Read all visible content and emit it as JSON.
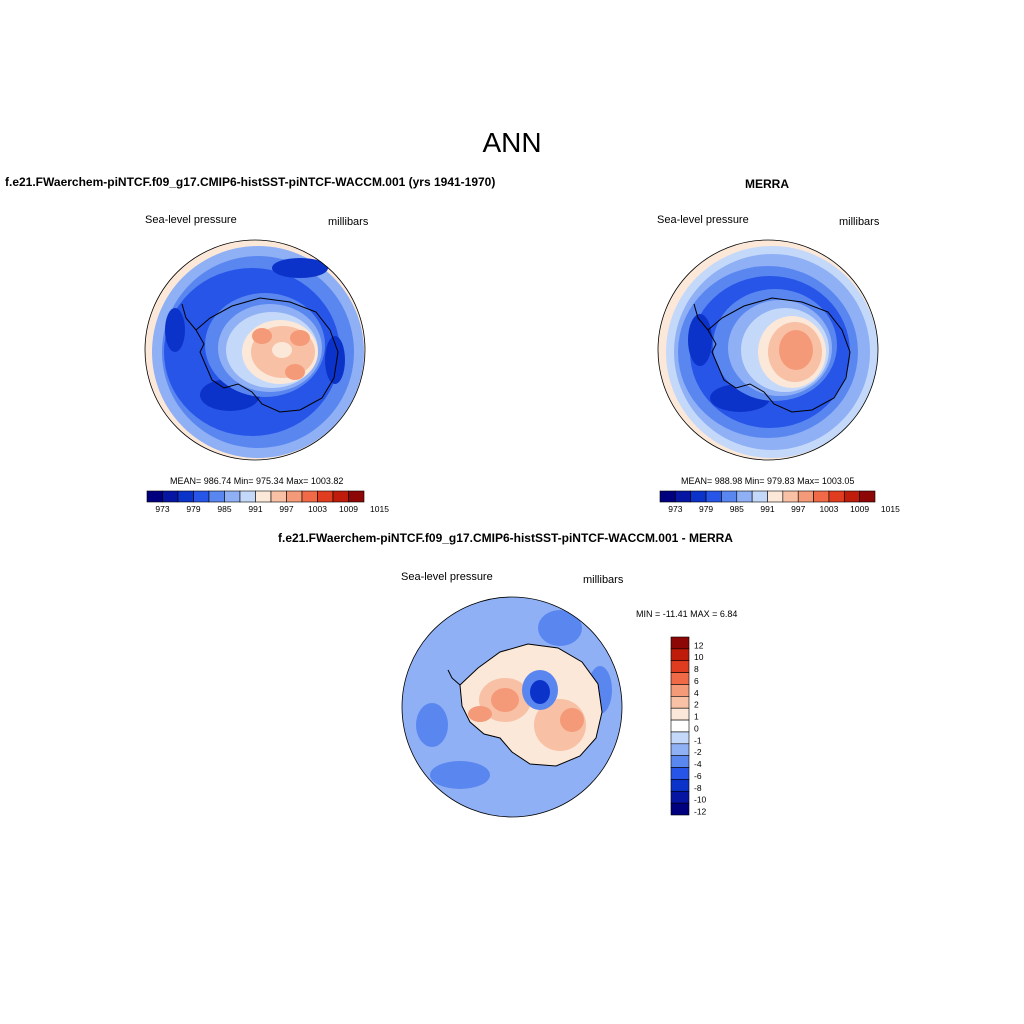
{
  "page_title": "ANN",
  "panels": [
    {
      "title": "f.e21.FWaerchem-piNTCF.f09_g17.CMIP6-histSST-piNTCF-WACCM.001 (yrs 1941-1970)",
      "left_label": "Sea-level pressure",
      "right_label": "millibars",
      "stats": "MEAN= 986.74  Min= 975.34  Max= 1003.82",
      "colorbar_ticks": [
        "973",
        "979",
        "985",
        "991",
        "997",
        "1003",
        "1009",
        "1015"
      ]
    },
    {
      "title": "MERRA",
      "left_label": "Sea-level pressure",
      "right_label": "millibars",
      "stats": "MEAN= 988.98  Min= 979.83  Max= 1003.05",
      "colorbar_ticks": [
        "973",
        "979",
        "985",
        "991",
        "997",
        "1003",
        "1009",
        "1015"
      ]
    },
    {
      "title": "f.e21.FWaerchem-piNTCF.f09_g17.CMIP6-histSST-piNTCF-WACCM.001 - MERRA",
      "left_label": "Sea-level pressure",
      "right_label": "millibars",
      "stats": "MIN = -11.41 MAX =   6.84",
      "colorbar_ticks": [
        "12",
        "10",
        "8",
        "6",
        "4",
        "2",
        "1",
        "0",
        "-1",
        "-2",
        "-4",
        "-6",
        "-8",
        "-10",
        "-12"
      ]
    }
  ],
  "colors": {
    "abs_scale": [
      "#00007f",
      "#0616a3",
      "#0c33c9",
      "#2755e8",
      "#5a86f0",
      "#8fb0f5",
      "#c4d8fa",
      "#fbe8d8",
      "#f8c0a4",
      "#f59a78",
      "#f06a48",
      "#e03c1f",
      "#c01c0c",
      "#8e0707"
    ],
    "diff_scale": [
      "#8e0707",
      "#c01c0c",
      "#e03c1f",
      "#f06a48",
      "#f59a78",
      "#f8c0a4",
      "#fbe8d8",
      "#ffffff",
      "#c4d8fa",
      "#8fb0f5",
      "#5a86f0",
      "#2755e8",
      "#0c33c9",
      "#0616a3",
      "#00007f"
    ]
  }
}
